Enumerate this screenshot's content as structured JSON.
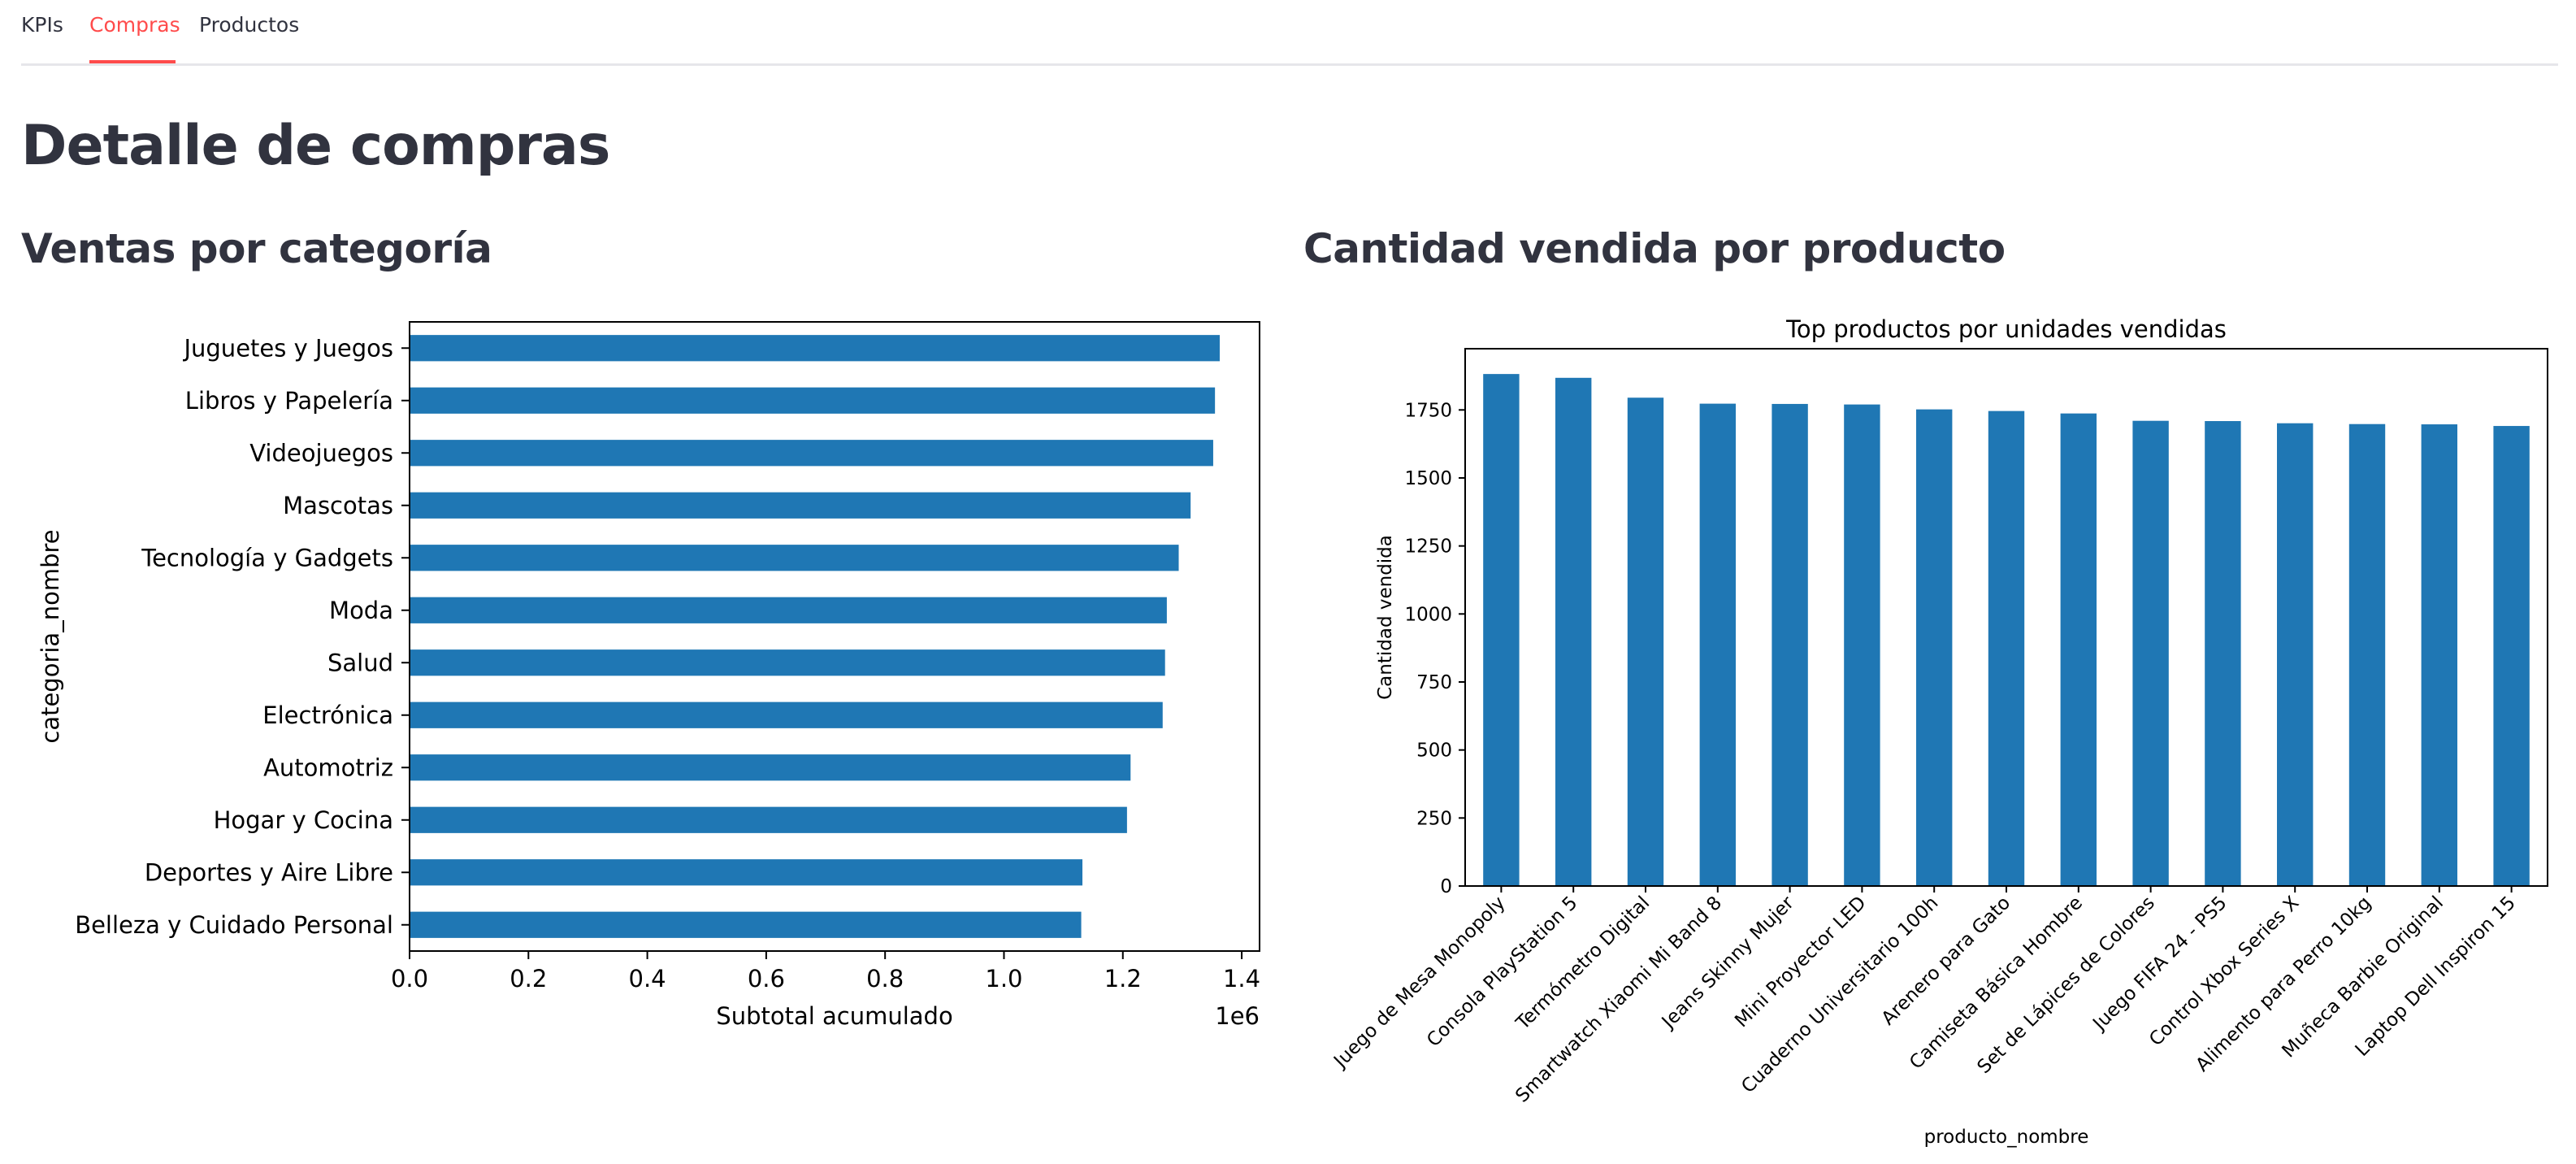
{
  "tabs": [
    {
      "label": "KPIs",
      "active": false
    },
    {
      "label": "Compras",
      "active": true
    },
    {
      "label": "Productos",
      "active": false
    }
  ],
  "page": {
    "title": "Detalle de compras"
  },
  "sections": {
    "left_title": "Ventas por categoría",
    "right_title": "Cantidad vendida por producto"
  },
  "colors": {
    "bar": "#1f77b4",
    "active_tab": "#ff4b4b",
    "text": "#31333f"
  },
  "chart_data": [
    {
      "type": "bar",
      "orientation": "horizontal",
      "title": "",
      "xlabel": "Subtotal acumulado",
      "ylabel": "categoria_nombre",
      "x_offset_label": "1e6",
      "xlim": [
        0,
        1.43
      ],
      "xticks": [
        0.0,
        0.2,
        0.4,
        0.6,
        0.8,
        1.0,
        1.2,
        1.4
      ],
      "grid": false,
      "categories": [
        "Belleza y Cuidado Personal",
        "Deportes y Aire Libre",
        "Hogar y Cocina",
        "Automotriz",
        "Electrónica",
        "Salud",
        "Moda",
        "Tecnología y Gadgets",
        "Mascotas",
        "Videojuegos",
        "Libros y Papelería",
        "Juguetes y Juegos"
      ],
      "values": [
        1.13,
        1.132,
        1.207,
        1.213,
        1.267,
        1.271,
        1.274,
        1.294,
        1.314,
        1.352,
        1.355,
        1.363
      ]
    },
    {
      "type": "bar",
      "orientation": "vertical",
      "title": "Top productos por unidades vendidas",
      "xlabel": "producto_nombre",
      "ylabel": "Cantidad vendida",
      "ylim": [
        0,
        1975
      ],
      "yticks": [
        0,
        250,
        500,
        750,
        1000,
        1250,
        1500,
        1750
      ],
      "grid": false,
      "categories": [
        "Juego de Mesa Monopoly",
        "Consola PlayStation 5",
        "Termómetro Digital",
        "Smartwatch Xiaomi Mi Band 8",
        "Jeans Skinny Mujer",
        "Mini Proyector LED",
        "Cuaderno Universitario 100h",
        "Arenero para Gato",
        "Camiseta Básica Hombre",
        "Set de Lápices de Colores",
        "Juego FIFA 24 - PS5",
        "Control Xbox Series X",
        "Alimento para Perro 10kg",
        "Muñeca Barbie Original",
        "Laptop Dell Inspiron 15"
      ],
      "values": [
        1882,
        1868,
        1795,
        1773,
        1772,
        1770,
        1752,
        1746,
        1737,
        1710,
        1709,
        1701,
        1698,
        1697,
        1691
      ]
    }
  ]
}
